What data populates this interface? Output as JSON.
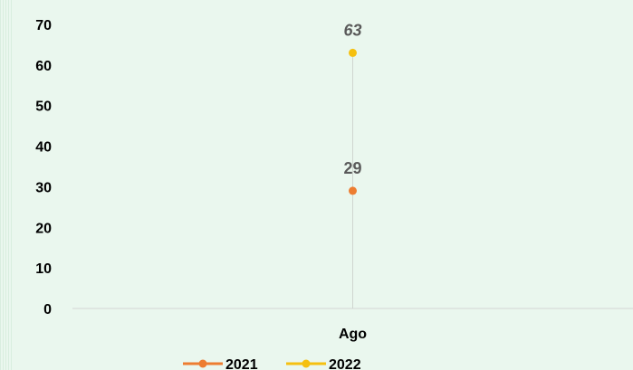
{
  "chart_data": {
    "type": "line",
    "title": "",
    "xlabel": "",
    "ylabel": "",
    "categories": [
      "Ago"
    ],
    "ylim": [
      0,
      70
    ],
    "yticks": [
      0,
      10,
      20,
      30,
      40,
      50,
      60,
      70
    ],
    "grid": false,
    "legend_position": "bottom",
    "series": [
      {
        "name": "2021",
        "values": [
          29
        ],
        "color": "#ed7d31",
        "data_labels": [
          "29"
        ]
      },
      {
        "name": "2022",
        "values": [
          63
        ],
        "color": "#f5c010",
        "data_labels": [
          "63"
        ]
      }
    ]
  }
}
